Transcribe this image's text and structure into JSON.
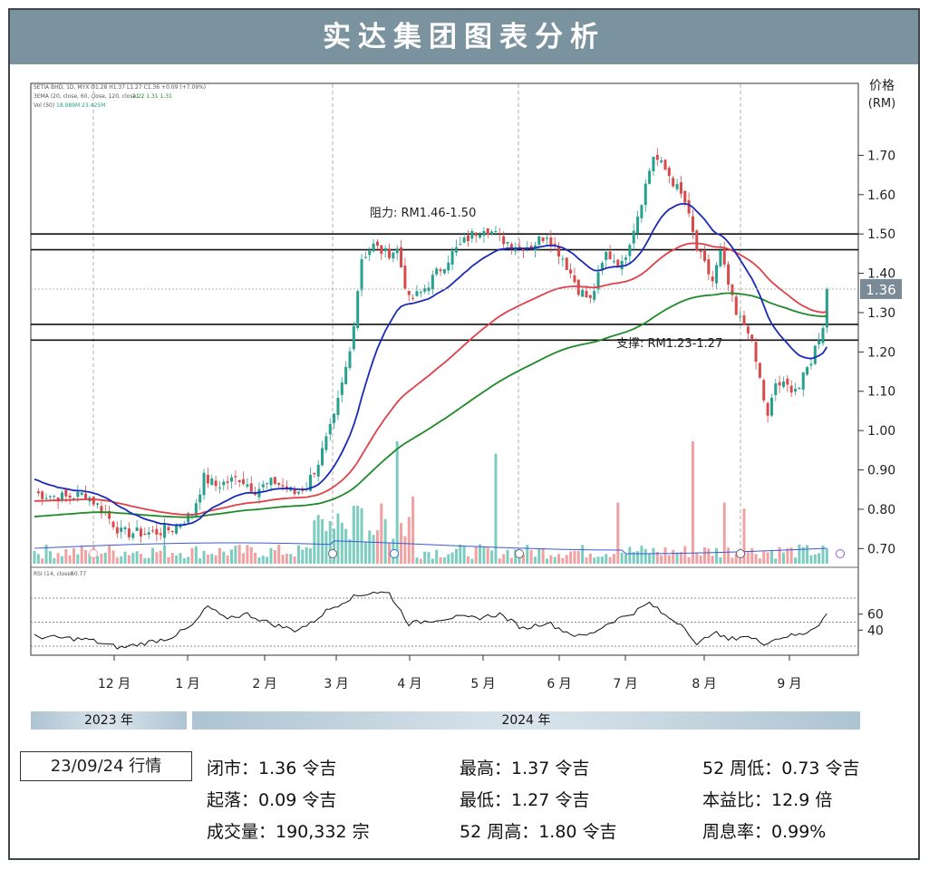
{
  "title": "实达集团图表分析",
  "chart_data": {
    "type": "candlestick",
    "ticker_line": "SETIA BHD, 1D, MYX  O1.28 H1.37 L1.27 C1.36 +0.09 (+7.09%)",
    "ema_line": "3EMA (20, close, 60, close, 120, close)",
    "ema_values": "1.22  1.31  1.31",
    "vol_line": "Vol (50)",
    "vol_values": "18.989M  23.425M",
    "rsi_line": "RSI (14, close)",
    "rsi_value": "60.77",
    "y_axis_title": "价格",
    "y_axis_unit": "(RM)",
    "ylim": [
      0.65,
      1.9
    ],
    "yticks": [
      "1.70",
      "1.60",
      "1.50",
      "1.40",
      "1.30",
      "1.20",
      "1.10",
      "1.00",
      "0.90",
      "0.80",
      "0.70"
    ],
    "current_price_label": "1.36",
    "rsi_ticks": [
      "60",
      "40"
    ],
    "rsi_lim": [
      0,
      100
    ],
    "months": [
      "12 月",
      "1 月",
      "2 月",
      "3 月",
      "4 月",
      "5 月",
      "6 月",
      "7 月",
      "8 月",
      "9 月"
    ],
    "resistance": {
      "label": "阻力: RM1.46-1.50",
      "low": 1.46,
      "high": 1.5
    },
    "support": {
      "label": "支撑: RM1.23-1.27",
      "low": 1.23,
      "high": 1.27
    },
    "ema_colors": {
      "ema20": "#1a2bb8",
      "ema60": "#e0404a",
      "ema120": "#1f8a2a"
    },
    "candle_colors": {
      "up": "#26a08f",
      "down": "#d84a4a"
    },
    "volume_colors": {
      "up": "#7ccdc0",
      "down": "#f0a1a1"
    },
    "close_anchors": [
      [
        0,
        0.84
      ],
      [
        8,
        0.83
      ],
      [
        13,
        0.84
      ],
      [
        17,
        0.8
      ],
      [
        22,
        0.74
      ],
      [
        30,
        0.74
      ],
      [
        35,
        0.75
      ],
      [
        40,
        0.79
      ],
      [
        43,
        0.88
      ],
      [
        46,
        0.86
      ],
      [
        52,
        0.88
      ],
      [
        56,
        0.85
      ],
      [
        61,
        0.87
      ],
      [
        66,
        0.84
      ],
      [
        69,
        0.86
      ],
      [
        72,
        0.92
      ],
      [
        76,
        1.03
      ],
      [
        80,
        1.2
      ],
      [
        83,
        1.44
      ],
      [
        86,
        1.47
      ],
      [
        89,
        1.45
      ],
      [
        92,
        1.46
      ],
      [
        95,
        1.33
      ],
      [
        98,
        1.35
      ],
      [
        102,
        1.4
      ],
      [
        106,
        1.45
      ],
      [
        110,
        1.49
      ],
      [
        114,
        1.52
      ],
      [
        118,
        1.49
      ],
      [
        122,
        1.47
      ],
      [
        126,
        1.47
      ],
      [
        130,
        1.5
      ],
      [
        134,
        1.44
      ],
      [
        138,
        1.36
      ],
      [
        141,
        1.33
      ],
      [
        145,
        1.45
      ],
      [
        149,
        1.42
      ],
      [
        153,
        1.55
      ],
      [
        157,
        1.7
      ],
      [
        161,
        1.65
      ],
      [
        165,
        1.58
      ],
      [
        168,
        1.46
      ],
      [
        170,
        1.42
      ],
      [
        172,
        1.38
      ],
      [
        174,
        1.45
      ],
      [
        178,
        1.29
      ],
      [
        181,
        1.26
      ],
      [
        184,
        1.13
      ],
      [
        186,
        1.03
      ],
      [
        188,
        1.12
      ],
      [
        191,
        1.11
      ],
      [
        194,
        1.11
      ],
      [
        197,
        1.18
      ],
      [
        200,
        1.27
      ],
      [
        201,
        1.36
      ]
    ],
    "volume_spikes": [
      [
        92,
        1.0
      ],
      [
        96,
        0.55
      ],
      [
        117,
        0.9
      ],
      [
        148,
        0.5
      ],
      [
        167,
        1.0
      ],
      [
        175,
        0.5
      ],
      [
        180,
        0.45
      ]
    ],
    "rsi_anchors": [
      [
        0,
        32
      ],
      [
        8,
        30
      ],
      [
        14,
        28
      ],
      [
        18,
        22
      ],
      [
        22,
        18
      ],
      [
        28,
        24
      ],
      [
        34,
        30
      ],
      [
        40,
        45
      ],
      [
        44,
        70
      ],
      [
        48,
        55
      ],
      [
        54,
        60
      ],
      [
        60,
        48
      ],
      [
        66,
        40
      ],
      [
        70,
        48
      ],
      [
        74,
        64
      ],
      [
        80,
        80
      ],
      [
        86,
        88
      ],
      [
        90,
        86
      ],
      [
        95,
        48
      ],
      [
        100,
        52
      ],
      [
        106,
        56
      ],
      [
        112,
        55
      ],
      [
        118,
        60
      ],
      [
        124,
        42
      ],
      [
        130,
        50
      ],
      [
        134,
        40
      ],
      [
        138,
        32
      ],
      [
        141,
        35
      ],
      [
        146,
        50
      ],
      [
        152,
        62
      ],
      [
        156,
        74
      ],
      [
        160,
        58
      ],
      [
        165,
        45
      ],
      [
        168,
        20
      ],
      [
        172,
        38
      ],
      [
        176,
        28
      ],
      [
        180,
        33
      ],
      [
        185,
        24
      ],
      [
        190,
        32
      ],
      [
        195,
        35
      ],
      [
        199,
        48
      ],
      [
        201,
        61
      ]
    ]
  },
  "footer": {
    "year_2023": "2023 年",
    "year_2024": "2024 年",
    "date_label": "23/09/24 行情",
    "close": "闭市：1.36 令吉",
    "high": "最高：1.37 令吉",
    "low52": "52 周低：0.73 令吉",
    "change": "起落：0.09 令吉",
    "low": "最低：1.27 令吉",
    "pe": "本益比：12.9 倍",
    "volume": "成交量：190,332 宗",
    "high52": "52 周高：1.80 令吉",
    "yield": "周息率：0.99%"
  }
}
